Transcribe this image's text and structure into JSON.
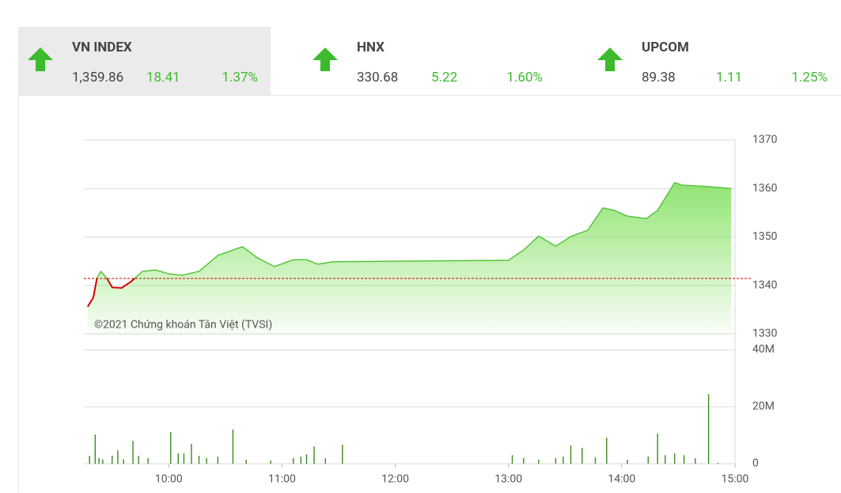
{
  "indices": [
    {
      "name": "VN INDEX",
      "value": "1,359.86",
      "change": "18.41",
      "percent": "1.37%"
    },
    {
      "name": "HNX",
      "value": "330.68",
      "change": "5.22",
      "percent": "1.60%"
    },
    {
      "name": "UPCOM",
      "value": "89.38",
      "change": "1.11",
      "percent": "1.25%"
    }
  ],
  "chart_data": {
    "type": "intraday",
    "watermark": "©2021 Chứng khoán Tân Việt (TVSI)",
    "xlim": [
      "09:15",
      "15:00"
    ],
    "xticks": [
      "10:00",
      "11:00",
      "12:00",
      "13:00",
      "14:00",
      "15:00"
    ],
    "ylim": [
      1330,
      1370
    ],
    "yticks": [
      1330,
      1340,
      1350,
      1360,
      1370
    ],
    "reference": 1341.45,
    "reference_color": "#d40000",
    "up_color": "#56c43c",
    "down_color": "#d40000",
    "x": [
      "09:17",
      "09:20",
      "09:22",
      "09:24",
      "09:27",
      "09:30",
      "09:35",
      "09:40",
      "09:46",
      "09:53",
      "10:00",
      "10:07",
      "10:16",
      "10:26",
      "10:39",
      "10:47",
      "10:56",
      "11:06",
      "11:13",
      "11:19",
      "11:27",
      "12:00",
      "13:00",
      "13:08",
      "13:16",
      "13:25",
      "13:33",
      "13:42",
      "13:50",
      "13:56",
      "14:03",
      "14:13",
      "14:19",
      "14:28",
      "14:32",
      "14:42",
      "14:58"
    ],
    "values": [
      1335.6,
      1337.5,
      1341.6,
      1342.9,
      1341.6,
      1339.6,
      1339.5,
      1340.8,
      1342.9,
      1343.2,
      1342.4,
      1342.1,
      1342.9,
      1346.2,
      1348.0,
      1345.7,
      1343.9,
      1345.3,
      1345.3,
      1344.4,
      1344.9,
      1345.0,
      1345.2,
      1347.3,
      1350.2,
      1348.1,
      1350.1,
      1351.4,
      1356.0,
      1355.5,
      1354.3,
      1353.8,
      1355.5,
      1361.2,
      1360.7,
      1360.5,
      1360.0
    ],
    "volume": {
      "color": "#3a8a1e",
      "ylim": [
        0,
        40
      ],
      "yticks": [
        0,
        {
          "value": 20,
          "label": "20M"
        },
        {
          "value": 40,
          "label": "40M"
        }
      ],
      "x": [
        "09:18",
        "09:21",
        "09:23",
        "09:25",
        "09:30",
        "09:33",
        "09:36",
        "09:41",
        "09:44",
        "09:49",
        "10:01",
        "10:05",
        "10:08",
        "10:12",
        "10:16",
        "10:20",
        "10:26",
        "10:34",
        "10:41",
        "10:54",
        "11:06",
        "11:10",
        "11:13",
        "11:17",
        "11:23",
        "11:32",
        "13:02",
        "13:08",
        "13:16",
        "13:25",
        "13:29",
        "13:33",
        "13:39",
        "13:46",
        "13:52",
        "14:03",
        "14:14",
        "14:19",
        "14:23",
        "14:28",
        "14:33",
        "14:39",
        "14:46",
        "14:51"
      ],
      "values": [
        2.8,
        10.3,
        2,
        1.5,
        2.8,
        4.7,
        1.5,
        8,
        2.8,
        2,
        11.1,
        3.6,
        3.6,
        7,
        2.8,
        2,
        2.5,
        12,
        1.4,
        1.1,
        2,
        2.5,
        3.3,
        6.1,
        2,
        6.7,
        3,
        2,
        1.4,
        2,
        2.5,
        6.4,
        5.6,
        2.2,
        9.2,
        1.4,
        2.5,
        10.6,
        3,
        3.6,
        3,
        2,
        24.4,
        0.3
      ]
    }
  }
}
